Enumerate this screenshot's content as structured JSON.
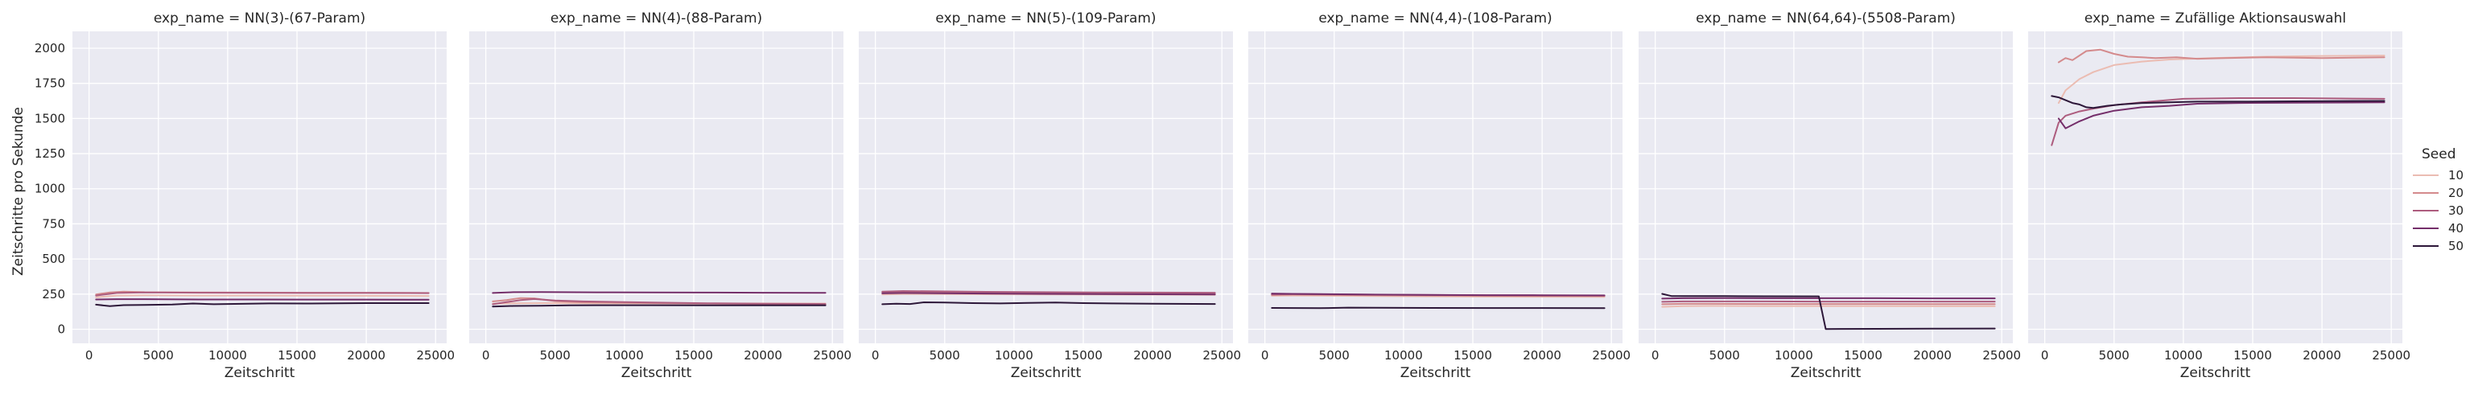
{
  "chart_data": {
    "type": "line",
    "style": {
      "panel_bg": "#eaeaf2",
      "grid_color": "#ffffff",
      "text_color": "#262626"
    },
    "shared": {
      "xlabel": "Zeitschritt",
      "ylabel": "Zeitschritte pro Sekunde",
      "xlim": [
        -1200,
        25800
      ],
      "ylim": [
        -100,
        2120
      ],
      "xticks": [
        0,
        5000,
        10000,
        15000,
        20000,
        25000
      ],
      "yticks": [
        0,
        250,
        500,
        750,
        1000,
        1250,
        1500,
        1750,
        2000
      ],
      "grid": true
    },
    "legend": {
      "title": "Seed",
      "placement": "right",
      "entries": [
        {
          "label": "10",
          "color": "#ebbcb2"
        },
        {
          "label": "20",
          "color": "#d48a8c"
        },
        {
          "label": "30",
          "color": "#ad5c7e"
        },
        {
          "label": "40",
          "color": "#742e6a"
        },
        {
          "label": "50",
          "color": "#2d1739"
        }
      ]
    },
    "panels": [
      {
        "title": "exp_name = NN(3)-(67-Param)",
        "series": [
          {
            "name": "10",
            "x": [
              500,
              2000,
              4000,
              8000,
              12000,
              16000,
              20000,
              24500
            ],
            "y": [
              228,
              240,
              242,
              240,
              240,
              239,
              238,
              237
            ]
          },
          {
            "name": "20",
            "x": [
              500,
              1500,
              2500,
              4000,
              8000,
              12000,
              16000,
              20000,
              24500
            ],
            "y": [
              248,
              262,
              268,
              264,
              262,
              261,
              260,
              260,
              258
            ]
          },
          {
            "name": "30",
            "x": [
              500,
              2000,
              4000,
              8000,
              12000,
              16000,
              20000,
              24500
            ],
            "y": [
              240,
              258,
              262,
              260,
              259,
              258,
              258,
              257
            ]
          },
          {
            "name": "40",
            "x": [
              500,
              2000,
              4000,
              8000,
              12000,
              16000,
              20000,
              24500
            ],
            "y": [
              212,
              214,
              214,
              212,
              212,
              211,
              211,
              210
            ]
          },
          {
            "name": "50",
            "x": [
              500,
              1500,
              2500,
              4000,
              6000,
              7500,
              9000,
              11000,
              13000,
              16000,
              20000,
              24500
            ],
            "y": [
              175,
              165,
              172,
              173,
              176,
              183,
              178,
              181,
              184,
              183,
              186,
              186
            ]
          }
        ]
      },
      {
        "title": "exp_name = NN(4)-(88-Param)",
        "series": [
          {
            "name": "10",
            "x": [
              500,
              2000,
              4000,
              8000,
              12000,
              16000,
              20000,
              24500
            ],
            "y": [
              182,
              185,
              186,
              185,
              185,
              184,
              184,
              183
            ]
          },
          {
            "name": "20",
            "x": [
              500,
              1500,
              2500,
              3500,
              5000,
              7000,
              9000,
              12000,
              16000,
              20000,
              24500
            ],
            "y": [
              198,
              208,
              222,
              220,
              200,
              192,
              190,
              186,
              183,
              180,
              178
            ]
          },
          {
            "name": "30",
            "x": [
              500,
              1500,
              2500,
              3500,
              5000,
              7000,
              12000,
              16000,
              20000,
              24500
            ],
            "y": [
              178,
              193,
              208,
              215,
              205,
              198,
              190,
              185,
              182,
              180
            ]
          },
          {
            "name": "40",
            "x": [
              500,
              2000,
              4000,
              8000,
              12000,
              16000,
              20000,
              24500
            ],
            "y": [
              258,
              264,
              265,
              263,
              262,
              261,
              260,
              259
            ]
          },
          {
            "name": "50",
            "x": [
              500,
              2000,
              4000,
              6000,
              8000,
              12000,
              16000,
              20000,
              24500
            ],
            "y": [
              162,
              166,
              168,
              170,
              171,
              171,
              170,
              170,
              170
            ]
          }
        ]
      },
      {
        "title": "exp_name = NN(5)-(109-Param)",
        "series": [
          {
            "name": "10",
            "x": [
              500,
              2000,
              4000,
              8000,
              12000,
              16000,
              20000,
              24500
            ],
            "y": [
              248,
              250,
              250,
              249,
              248,
              247,
              246,
              245
            ]
          },
          {
            "name": "20",
            "x": [
              500,
              2000,
              4000,
              8000,
              12000,
              16000,
              20000,
              24500
            ],
            "y": [
              262,
              264,
              263,
              260,
              258,
              256,
              255,
              254
            ]
          },
          {
            "name": "30",
            "x": [
              500,
              2000,
              4000,
              8000,
              12000,
              16000,
              20000,
              24500
            ],
            "y": [
              268,
              272,
              270,
              266,
              264,
              262,
              261,
              260
            ]
          },
          {
            "name": "40",
            "x": [
              500,
              2000,
              4000,
              8000,
              12000,
              16000,
              20000,
              24500
            ],
            "y": [
              256,
              258,
              257,
              254,
              252,
              250,
              249,
              248
            ]
          },
          {
            "name": "50",
            "x": [
              500,
              1500,
              2500,
              3500,
              5000,
              7000,
              9000,
              11000,
              13000,
              15000,
              17000,
              20000,
              24500
            ],
            "y": [
              178,
              182,
              180,
              192,
              190,
              186,
              184,
              188,
              190,
              186,
              184,
              182,
              180
            ]
          }
        ]
      },
      {
        "title": "exp_name = NN(4,4)-(108-Param)",
        "series": [
          {
            "name": "10",
            "x": [
              500,
              2000,
              4000,
              8000,
              12000,
              16000,
              20000,
              24500
            ],
            "y": [
              238,
              240,
              239,
              236,
              234,
              232,
              231,
              230
            ]
          },
          {
            "name": "20",
            "x": [
              500,
              2000,
              4000,
              8000,
              12000,
              16000,
              20000,
              24500
            ],
            "y": [
              244,
              246,
              245,
              242,
              240,
              238,
              237,
              236
            ]
          },
          {
            "name": "30",
            "x": [
              500,
              2000,
              4000,
              8000,
              12000,
              16000,
              20000,
              24500
            ],
            "y": [
              248,
              250,
              249,
              246,
              244,
              242,
              241,
              240
            ]
          },
          {
            "name": "40",
            "x": [
              500,
              2000,
              4000,
              8000,
              12000,
              16000,
              20000,
              24500
            ],
            "y": [
              254,
              252,
              250,
              247,
              245,
              243,
              242,
              241
            ]
          },
          {
            "name": "50",
            "x": [
              500,
              2000,
              4000,
              6000,
              8000,
              12000,
              16000,
              20000,
              24500
            ],
            "y": [
              152,
              151,
              150,
              154,
              153,
              152,
              151,
              151,
              150
            ]
          }
        ]
      },
      {
        "title": "exp_name = NN(64,64)-(5508-Param)",
        "series": [
          {
            "name": "10",
            "x": [
              500,
              2000,
              4000,
              8000,
              12000,
              16000,
              20000,
              24500
            ],
            "y": [
              160,
              165,
              166,
              165,
              165,
              165,
              164,
              164
            ]
          },
          {
            "name": "20",
            "x": [
              500,
              2000,
              4000,
              8000,
              12000,
              16000,
              20000,
              24500
            ],
            "y": [
              178,
              181,
              181,
              180,
              180,
              180,
              179,
              179
            ]
          },
          {
            "name": "30",
            "x": [
              500,
              2000,
              4000,
              8000,
              12000,
              16000,
              20000,
              24500
            ],
            "y": [
              195,
              198,
              198,
              198,
              197,
              197,
              197,
              197
            ]
          },
          {
            "name": "40",
            "x": [
              500,
              2000,
              4000,
              8000,
              12000,
              16000,
              20000,
              24500
            ],
            "y": [
              218,
              221,
              222,
              221,
              221,
              221,
              220,
              220
            ]
          },
          {
            "name": "50",
            "x": [
              500,
              1200,
              2500,
              5000,
              8000,
              11800,
              12300,
              16000,
              20000,
              24500
            ],
            "y": [
              252,
              236,
              236,
              236,
              235,
              234,
              2,
              3,
              4,
              5
            ]
          }
        ]
      },
      {
        "title": "exp_name = Zufällige Aktionsauswahl",
        "series": [
          {
            "name": "10",
            "x": [
              1000,
              1500,
              2500,
              3500,
              5000,
              7000,
              9000,
              12000,
              16000,
              20000,
              24500
            ],
            "y": [
              1610,
              1700,
              1780,
              1830,
              1880,
              1905,
              1920,
              1930,
              1940,
              1945,
              1948
            ]
          },
          {
            "name": "20",
            "x": [
              1000,
              1500,
              2000,
              3000,
              4000,
              5000,
              6000,
              7000,
              8000,
              9500,
              11000,
              13000,
              16000,
              20000,
              24500
            ],
            "y": [
              1900,
              1930,
              1915,
              1980,
              1990,
              1960,
              1940,
              1935,
              1930,
              1935,
              1925,
              1930,
              1935,
              1930,
              1935
            ]
          },
          {
            "name": "30",
            "x": [
              500,
              1000,
              1500,
              2500,
              3500,
              5000,
              7000,
              10000,
              14000,
              18000,
              24500
            ],
            "y": [
              1310,
              1470,
              1520,
              1550,
              1570,
              1595,
              1615,
              1640,
              1645,
              1645,
              1640
            ]
          },
          {
            "name": "40",
            "x": [
              1000,
              1500,
              2500,
              3500,
              5000,
              7000,
              9000,
              11000,
              14000,
              18000,
              24500
            ],
            "y": [
              1500,
              1430,
              1480,
              1520,
              1555,
              1580,
              1590,
              1605,
              1610,
              1612,
              1615
            ]
          },
          {
            "name": "50",
            "x": [
              500,
              1000,
              1500,
              2000,
              2500,
              3000,
              3500,
              4500,
              5500,
              7000,
              9000,
              11000,
              14000,
              18000,
              24500
            ],
            "y": [
              1660,
              1650,
              1630,
              1610,
              1600,
              1580,
              1575,
              1590,
              1600,
              1610,
              1615,
              1620,
              1620,
              1622,
              1625
            ]
          }
        ]
      }
    ]
  }
}
